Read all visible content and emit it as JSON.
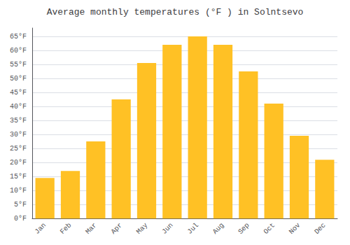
{
  "chart_data": {
    "type": "bar",
    "title": "Average monthly temperatures (°F ) in Solntsevo",
    "categories": [
      "Jan",
      "Feb",
      "Mar",
      "Apr",
      "May",
      "Jun",
      "Jul",
      "Aug",
      "Sep",
      "Oct",
      "Nov",
      "Dec"
    ],
    "values": [
      14.5,
      17,
      27.5,
      42.5,
      55.5,
      62,
      65,
      62,
      52.5,
      41,
      29.5,
      21
    ],
    "color": "#FFC125",
    "ylim": [
      0,
      68
    ],
    "yticks": [
      {
        "value": 0,
        "label": "0°F"
      },
      {
        "value": 5,
        "label": "5°F"
      },
      {
        "value": 10,
        "label": "10°F"
      },
      {
        "value": 15,
        "label": "15°F"
      },
      {
        "value": 20,
        "label": "20°F"
      },
      {
        "value": 25,
        "label": "25°F"
      },
      {
        "value": 30,
        "label": "30°F"
      },
      {
        "value": 35,
        "label": "35°F"
      },
      {
        "value": 40,
        "label": "40°F"
      },
      {
        "value": 45,
        "label": "45°F"
      },
      {
        "value": 50,
        "label": "50°F"
      },
      {
        "value": 55,
        "label": "55°F"
      },
      {
        "value": 60,
        "label": "60°F"
      },
      {
        "value": 65,
        "label": "65°F"
      }
    ],
    "grid": true
  }
}
